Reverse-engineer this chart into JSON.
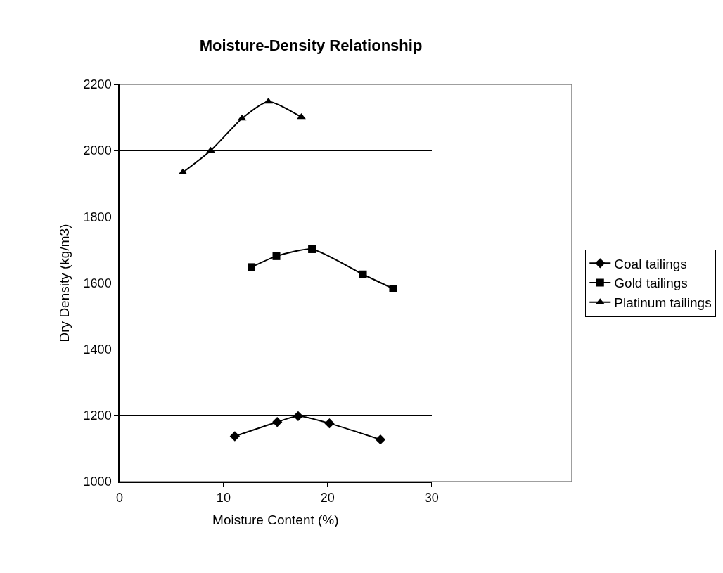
{
  "chart_data": {
    "type": "line",
    "title": "Moisture-Density Relationship",
    "xlabel": "Moisture Content (%)",
    "ylabel": "Dry Density (kg/m3)",
    "xlim": [
      0,
      30
    ],
    "xticks": [
      0,
      10,
      20,
      30
    ],
    "ylim": [
      1000,
      2200
    ],
    "yticks": [
      1000,
      1200,
      1400,
      1600,
      1800,
      2000,
      2200
    ],
    "grid": "y",
    "legend": "right",
    "line_style": "solid",
    "series": [
      {
        "name": "Coal tailings",
        "color": "#000000",
        "marker": "diamond",
        "x": [
          11.08,
          15.16,
          17.17,
          20.18,
          25.08
        ],
        "values": [
          1137,
          1180,
          1198,
          1176,
          1127
        ]
      },
      {
        "name": "Gold tailings",
        "color": "#000000",
        "marker": "square",
        "x": [
          12.68,
          15.08,
          18.5,
          23.4,
          26.3
        ],
        "values": [
          1648,
          1681,
          1702,
          1626,
          1583
        ]
      },
      {
        "name": "Platinum tailings",
        "color": "#000000",
        "marker": "triangle",
        "x": [
          6.08,
          8.76,
          11.77,
          14.31,
          17.48
        ],
        "values": [
          1934,
          2000,
          2097,
          2148,
          2101
        ]
      }
    ]
  }
}
